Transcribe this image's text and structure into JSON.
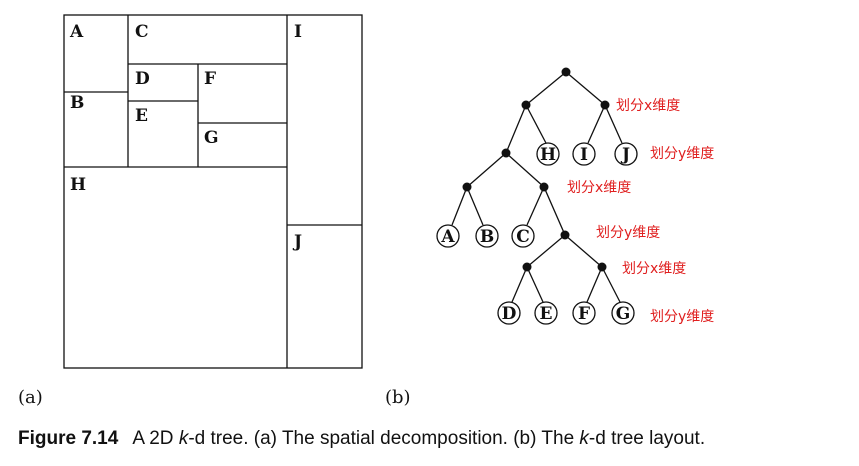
{
  "decomposition": {
    "panel_label": "(a)",
    "regions": [
      "A",
      "B",
      "C",
      "D",
      "E",
      "F",
      "G",
      "H",
      "I",
      "J"
    ]
  },
  "tree": {
    "panel_label": "(b)",
    "leaves": [
      "A",
      "B",
      "C",
      "D",
      "E",
      "F",
      "G",
      "H",
      "I",
      "J"
    ],
    "annotations": {
      "split_x": "划分x维度",
      "split_y": "划分y维度"
    }
  },
  "caption": {
    "number": "Figure 7.14",
    "part1": "A 2D ",
    "italic_k": "k",
    "part2": "-d tree. (a) The spatial decomposition. (b) The ",
    "part3": "-d tree layout."
  }
}
